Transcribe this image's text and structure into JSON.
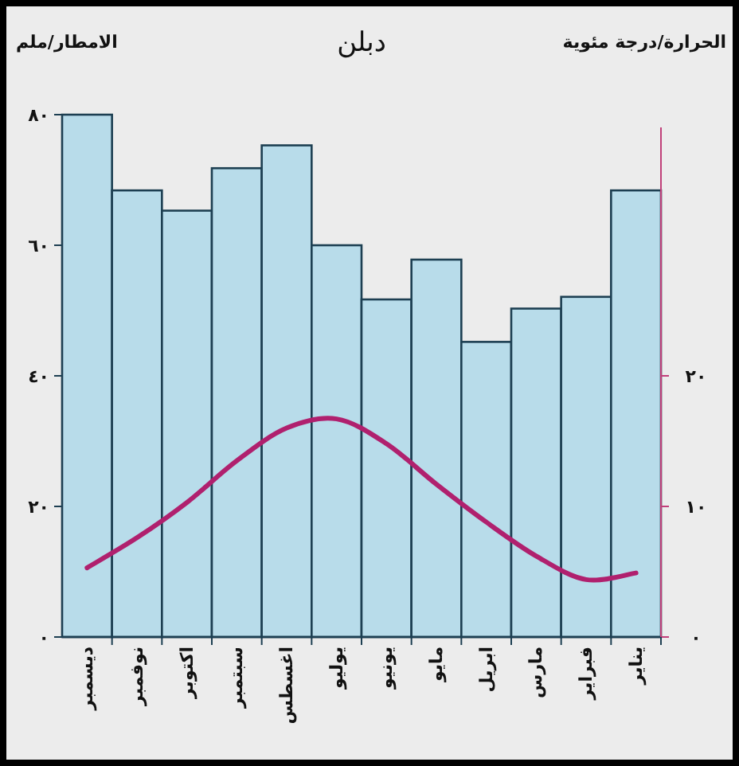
{
  "chart_data": {
    "type": "bar",
    "title": "دبلن",
    "ylabel": "الامطار/ملم",
    "y2label": "الحرارة/درجة مئوية",
    "categories": [
      "ديسمبر",
      "نوفمبر",
      "اكتوبر",
      "سبتمبر",
      "اغسطس",
      "يوليو",
      "يونيو",
      "مايو",
      "ابريل",
      "مارس",
      "فبراير",
      "يناير"
    ],
    "series": [
      {
        "color": "#b8dcea",
        "values": [
          80,
          68.4,
          65.3,
          71.8,
          75.3,
          60,
          51.7,
          57.8,
          45.2,
          50.3,
          52.1,
          68.4
        ]
      },
      {
        "type": "line",
        "axis": "y2",
        "color": "#b0206e",
        "values": [
          5.3,
          7.6,
          10.3,
          13.5,
          16.0,
          16.7,
          14.8,
          11.7,
          8.8,
          6.2,
          4.4,
          4.9
        ]
      }
    ],
    "ylim": [
      0,
      80
    ],
    "yticks": [
      {
        "value": 0,
        "label": "٠"
      },
      {
        "value": 20,
        "label": "٢٠"
      },
      {
        "value": 40,
        "label": "٤٠"
      },
      {
        "value": 60,
        "label": "٦٠"
      },
      {
        "value": 80,
        "label": "٨٠"
      }
    ],
    "y2lim": [
      0,
      40
    ],
    "y2ticks": [
      {
        "value": 0,
        "label": "٠"
      },
      {
        "value": 10,
        "label": "١٠"
      },
      {
        "value": 20,
        "label": "٢٠"
      }
    ],
    "grid": false,
    "marker": "none",
    "line_style": "solid"
  }
}
